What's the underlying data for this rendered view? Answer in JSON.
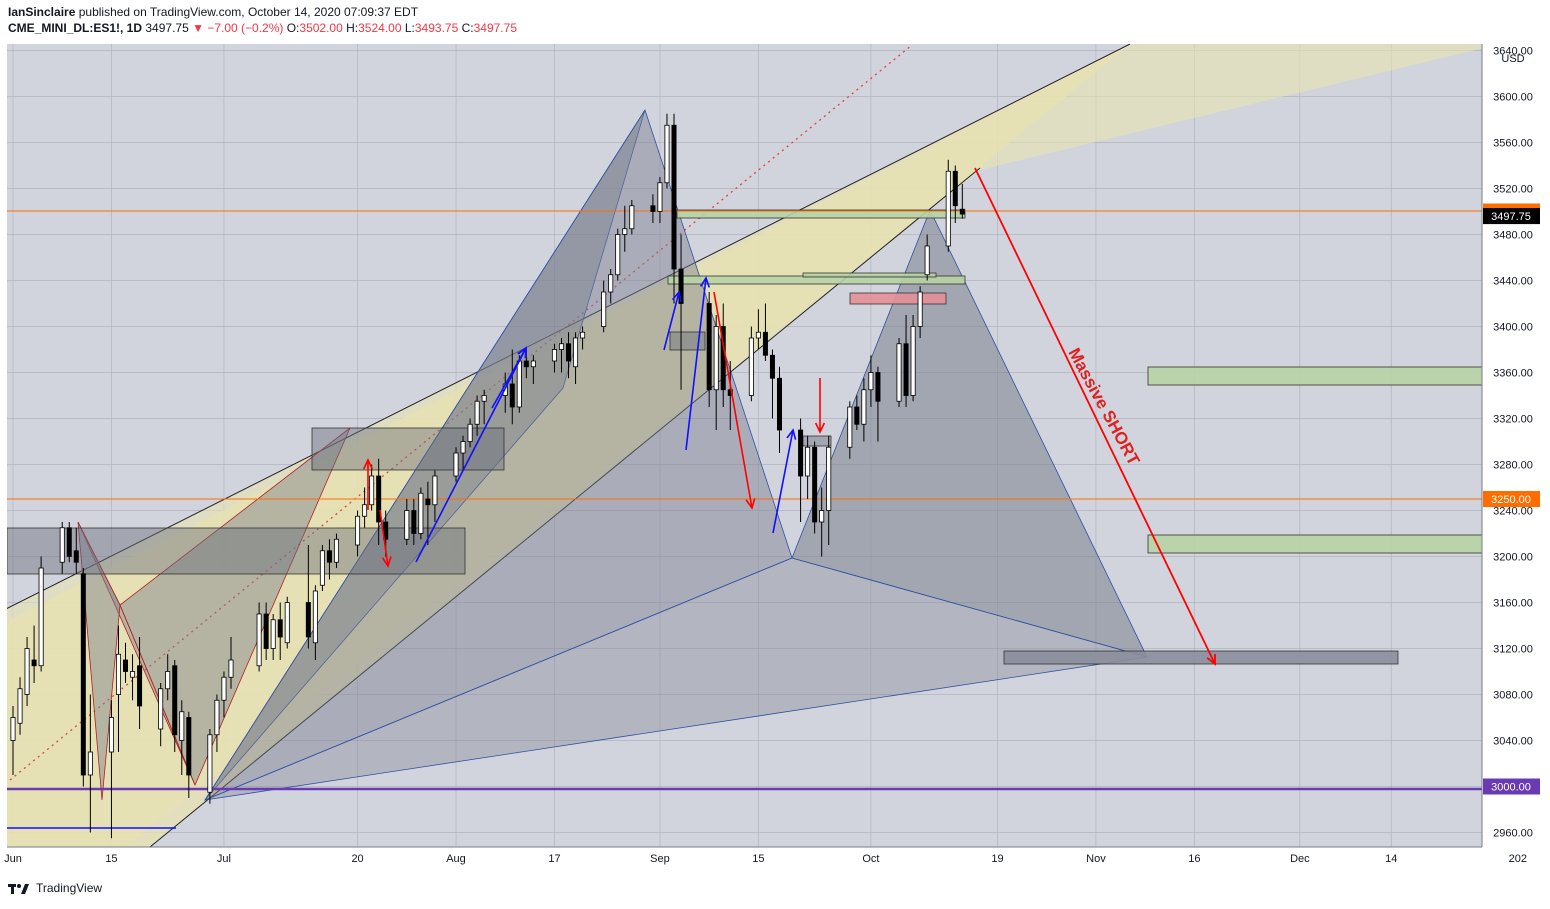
{
  "header": {
    "publisher": "IanSinclaire",
    "published_text": "published on TradingView.com, October 14, 2020 07:09:37 EDT",
    "symbol": "CME_MINI_DL:ES1!, 1D",
    "last": "3497.75",
    "change": "▼ −7.00 (−0.2%)",
    "o_label": "O:",
    "o_value": "3502.00",
    "h_label": "H:",
    "h_value": "3524.00",
    "l_label": "L:",
    "l_value": "3493.75",
    "c_label": "C:",
    "c_value": "3497.75"
  },
  "footer": {
    "brand": "TradingView"
  },
  "colors": {
    "bg": "#d1d4dc",
    "up": "#ffffff",
    "down": "#000000",
    "channel": "#e8e2b0",
    "pattern": "#7b7f8e",
    "blue": "#1010ff",
    "red": "#ff0000",
    "orange_line": "#ff6d00",
    "purple_line": "#6a3ab2",
    "green_zone": "#b7d3a4",
    "red_zone": "#e39097"
  },
  "chart_data": {
    "type": "candlestick",
    "currency": "USD",
    "ylim": [
      2950,
      3650
    ],
    "y_ticks": [
      2960,
      3000,
      3040,
      3080,
      3120,
      3160,
      3200,
      3240,
      3280,
      3320,
      3360,
      3400,
      3440,
      3480,
      3520,
      3560,
      3600,
      3640
    ],
    "x_labels": [
      "Jun",
      "15",
      "Jul",
      "20",
      "Aug",
      "17",
      "Sep",
      "15",
      "Oct",
      "19",
      "Nov",
      "16",
      "Dec",
      "14",
      "202"
    ],
    "price_labels": [
      {
        "value": 3500,
        "text": "3500.00"
      },
      {
        "value": 3497.75,
        "text": "3497.75"
      },
      {
        "value": 3250,
        "text": "3250.00"
      },
      {
        "value": 3000,
        "text": "3000.00"
      }
    ],
    "annotation": "Massive SHORT",
    "candles": [
      {
        "d": "2020-06-01",
        "o": 3040,
        "h": 3070,
        "l": 3010,
        "c": 3060
      },
      {
        "d": "2020-06-02",
        "o": 3055,
        "h": 3095,
        "l": 3045,
        "c": 3085
      },
      {
        "d": "2020-06-03",
        "o": 3080,
        "h": 3130,
        "l": 3070,
        "c": 3120
      },
      {
        "d": "2020-06-04",
        "o": 3110,
        "h": 3140,
        "l": 3090,
        "c": 3105
      },
      {
        "d": "2020-06-05",
        "o": 3105,
        "h": 3200,
        "l": 3100,
        "c": 3190
      },
      {
        "d": "2020-06-08",
        "o": 3195,
        "h": 3230,
        "l": 3185,
        "c": 3225
      },
      {
        "d": "2020-06-09",
        "o": 3225,
        "h": 3230,
        "l": 3195,
        "c": 3200
      },
      {
        "d": "2020-06-10",
        "o": 3205,
        "h": 3225,
        "l": 3185,
        "c": 3195
      },
      {
        "d": "2020-06-11",
        "o": 3185,
        "h": 3190,
        "l": 3000,
        "c": 3010
      },
      {
        "d": "2020-06-12",
        "o": 3010,
        "h": 3080,
        "l": 2960,
        "c": 3030
      },
      {
        "d": "2020-06-15",
        "o": 3030,
        "h": 3075,
        "l": 2955,
        "c": 3060
      },
      {
        "d": "2020-06-16",
        "o": 3080,
        "h": 3140,
        "l": 3030,
        "c": 3115
      },
      {
        "d": "2020-06-17",
        "o": 3110,
        "h": 3125,
        "l": 3090,
        "c": 3100
      },
      {
        "d": "2020-06-18",
        "o": 3095,
        "h": 3115,
        "l": 3075,
        "c": 3100
      },
      {
        "d": "2020-06-19",
        "o": 3105,
        "h": 3130,
        "l": 3050,
        "c": 3070
      },
      {
        "d": "2020-06-22",
        "o": 3050,
        "h": 3090,
        "l": 3035,
        "c": 3085
      },
      {
        "d": "2020-06-23",
        "o": 3085,
        "h": 3115,
        "l": 3075,
        "c": 3100
      },
      {
        "d": "2020-06-24",
        "o": 3105,
        "h": 3110,
        "l": 3030,
        "c": 3045
      },
      {
        "d": "2020-06-25",
        "o": 3040,
        "h": 3075,
        "l": 3010,
        "c": 3065
      },
      {
        "d": "2020-06-26",
        "o": 3060,
        "h": 3065,
        "l": 2990,
        "c": 3010
      },
      {
        "d": "2020-06-29",
        "o": 2995,
        "h": 3050,
        "l": 2985,
        "c": 3045
      },
      {
        "d": "2020-06-30",
        "o": 3045,
        "h": 3080,
        "l": 3030,
        "c": 3075
      },
      {
        "d": "2020-07-01",
        "o": 3075,
        "h": 3100,
        "l": 3060,
        "c": 3095
      },
      {
        "d": "2020-07-02",
        "o": 3095,
        "h": 3130,
        "l": 3085,
        "c": 3110
      },
      {
        "d": "2020-07-06",
        "o": 3105,
        "h": 3160,
        "l": 3100,
        "c": 3150
      },
      {
        "d": "2020-07-07",
        "o": 3150,
        "h": 3160,
        "l": 3110,
        "c": 3120
      },
      {
        "d": "2020-07-08",
        "o": 3120,
        "h": 3150,
        "l": 3110,
        "c": 3145
      },
      {
        "d": "2020-07-09",
        "o": 3145,
        "h": 3160,
        "l": 3110,
        "c": 3130
      },
      {
        "d": "2020-07-10",
        "o": 3125,
        "h": 3165,
        "l": 3120,
        "c": 3160
      },
      {
        "d": "2020-07-13",
        "o": 3160,
        "h": 3210,
        "l": 3120,
        "c": 3130
      },
      {
        "d": "2020-07-14",
        "o": 3125,
        "h": 3175,
        "l": 3110,
        "c": 3170
      },
      {
        "d": "2020-07-15",
        "o": 3175,
        "h": 3210,
        "l": 3170,
        "c": 3205
      },
      {
        "d": "2020-07-16",
        "o": 3205,
        "h": 3215,
        "l": 3180,
        "c": 3195
      },
      {
        "d": "2020-07-17",
        "o": 3195,
        "h": 3220,
        "l": 3190,
        "c": 3215
      },
      {
        "d": "2020-07-20",
        "o": 3210,
        "h": 3240,
        "l": 3200,
        "c": 3235
      },
      {
        "d": "2020-07-21",
        "o": 3235,
        "h": 3260,
        "l": 3225,
        "c": 3245
      },
      {
        "d": "2020-07-22",
        "o": 3245,
        "h": 3280,
        "l": 3240,
        "c": 3270
      },
      {
        "d": "2020-07-23",
        "o": 3270,
        "h": 3285,
        "l": 3210,
        "c": 3230
      },
      {
        "d": "2020-07-24",
        "o": 3230,
        "h": 3240,
        "l": 3200,
        "c": 3215
      },
      {
        "d": "2020-07-27",
        "o": 3215,
        "h": 3250,
        "l": 3210,
        "c": 3240
      },
      {
        "d": "2020-07-28",
        "o": 3240,
        "h": 3250,
        "l": 3210,
        "c": 3220
      },
      {
        "d": "2020-07-29",
        "o": 3220,
        "h": 3260,
        "l": 3215,
        "c": 3255
      },
      {
        "d": "2020-07-30",
        "o": 3250,
        "h": 3265,
        "l": 3210,
        "c": 3245
      },
      {
        "d": "2020-07-31",
        "o": 3245,
        "h": 3275,
        "l": 3230,
        "c": 3270
      },
      {
        "d": "2020-08-03",
        "o": 3270,
        "h": 3295,
        "l": 3265,
        "c": 3290
      },
      {
        "d": "2020-08-04",
        "o": 3290,
        "h": 3305,
        "l": 3275,
        "c": 3300
      },
      {
        "d": "2020-08-05",
        "o": 3300,
        "h": 3320,
        "l": 3295,
        "c": 3315
      },
      {
        "d": "2020-08-06",
        "o": 3315,
        "h": 3340,
        "l": 3305,
        "c": 3335
      },
      {
        "d": "2020-08-07",
        "o": 3335,
        "h": 3345,
        "l": 3315,
        "c": 3340
      },
      {
        "d": "2020-08-10",
        "o": 3340,
        "h": 3360,
        "l": 3325,
        "c": 3350
      },
      {
        "d": "2020-08-11",
        "o": 3350,
        "h": 3380,
        "l": 3315,
        "c": 3330
      },
      {
        "d": "2020-08-12",
        "o": 3330,
        "h": 3375,
        "l": 3325,
        "c": 3370
      },
      {
        "d": "2020-08-13",
        "o": 3370,
        "h": 3380,
        "l": 3355,
        "c": 3365
      },
      {
        "d": "2020-08-14",
        "o": 3365,
        "h": 3375,
        "l": 3350,
        "c": 3370
      },
      {
        "d": "2020-08-17",
        "o": 3370,
        "h": 3385,
        "l": 3360,
        "c": 3380
      },
      {
        "d": "2020-08-18",
        "o": 3380,
        "h": 3390,
        "l": 3360,
        "c": 3385
      },
      {
        "d": "2020-08-19",
        "o": 3385,
        "h": 3395,
        "l": 3355,
        "c": 3370
      },
      {
        "d": "2020-08-20",
        "o": 3365,
        "h": 3395,
        "l": 3350,
        "c": 3390
      },
      {
        "d": "2020-08-21",
        "o": 3390,
        "h": 3400,
        "l": 3380,
        "c": 3395
      },
      {
        "d": "2020-08-24",
        "o": 3400,
        "h": 3440,
        "l": 3395,
        "c": 3430
      },
      {
        "d": "2020-08-25",
        "o": 3430,
        "h": 3450,
        "l": 3420,
        "c": 3445
      },
      {
        "d": "2020-08-26",
        "o": 3445,
        "h": 3485,
        "l": 3440,
        "c": 3480
      },
      {
        "d": "2020-08-27",
        "o": 3480,
        "h": 3505,
        "l": 3465,
        "c": 3485
      },
      {
        "d": "2020-08-28",
        "o": 3485,
        "h": 3510,
        "l": 3480,
        "c": 3505
      },
      {
        "d": "2020-08-31",
        "o": 3505,
        "h": 3515,
        "l": 3490,
        "c": 3500
      },
      {
        "d": "2020-09-01",
        "o": 3500,
        "h": 3530,
        "l": 3490,
        "c": 3525
      },
      {
        "d": "2020-09-02",
        "o": 3525,
        "h": 3585,
        "l": 3520,
        "c": 3575
      },
      {
        "d": "2020-09-03",
        "o": 3575,
        "h": 3585,
        "l": 3420,
        "c": 3450
      },
      {
        "d": "2020-09-04",
        "o": 3450,
        "h": 3480,
        "l": 3345,
        "c": 3420
      },
      {
        "d": "2020-09-08",
        "o": 3420,
        "h": 3430,
        "l": 3330,
        "c": 3345
      },
      {
        "d": "2020-09-09",
        "o": 3345,
        "h": 3410,
        "l": 3310,
        "c": 3400
      },
      {
        "d": "2020-09-10",
        "o": 3400,
        "h": 3420,
        "l": 3330,
        "c": 3345
      },
      {
        "d": "2020-09-11",
        "o": 3345,
        "h": 3370,
        "l": 3310,
        "c": 3340
      },
      {
        "d": "2020-09-14",
        "o": 3340,
        "h": 3400,
        "l": 3335,
        "c": 3390
      },
      {
        "d": "2020-09-15",
        "o": 3390,
        "h": 3415,
        "l": 3380,
        "c": 3395
      },
      {
        "d": "2020-09-16",
        "o": 3395,
        "h": 3420,
        "l": 3370,
        "c": 3375
      },
      {
        "d": "2020-09-17",
        "o": 3375,
        "h": 3380,
        "l": 3320,
        "c": 3355
      },
      {
        "d": "2020-09-18",
        "o": 3355,
        "h": 3365,
        "l": 3290,
        "c": 3310
      },
      {
        "d": "2020-09-21",
        "o": 3310,
        "h": 3320,
        "l": 3230,
        "c": 3270
      },
      {
        "d": "2020-09-22",
        "o": 3270,
        "h": 3305,
        "l": 3250,
        "c": 3295
      },
      {
        "d": "2020-09-23",
        "o": 3295,
        "h": 3300,
        "l": 3220,
        "c": 3230
      },
      {
        "d": "2020-09-24",
        "o": 3230,
        "h": 3260,
        "l": 3200,
        "c": 3240
      },
      {
        "d": "2020-09-25",
        "o": 3240,
        "h": 3305,
        "l": 3210,
        "c": 3295
      },
      {
        "d": "2020-09-28",
        "o": 3295,
        "h": 3335,
        "l": 3285,
        "c": 3330
      },
      {
        "d": "2020-09-29",
        "o": 3330,
        "h": 3340,
        "l": 3310,
        "c": 3315
      },
      {
        "d": "2020-09-30",
        "o": 3315,
        "h": 3355,
        "l": 3300,
        "c": 3345
      },
      {
        "d": "2020-10-01",
        "o": 3345,
        "h": 3375,
        "l": 3330,
        "c": 3360
      },
      {
        "d": "2020-10-02",
        "o": 3360,
        "h": 3365,
        "l": 3300,
        "c": 3335
      },
      {
        "d": "2020-10-05",
        "o": 3335,
        "h": 3390,
        "l": 3330,
        "c": 3385
      },
      {
        "d": "2020-10-06",
        "o": 3385,
        "h": 3410,
        "l": 3330,
        "c": 3340
      },
      {
        "d": "2020-10-07",
        "o": 3340,
        "h": 3410,
        "l": 3335,
        "c": 3400
      },
      {
        "d": "2020-10-08",
        "o": 3400,
        "h": 3435,
        "l": 3390,
        "c": 3430
      },
      {
        "d": "2020-10-09",
        "o": 3445,
        "h": 3480,
        "l": 3440,
        "c": 3470
      },
      {
        "d": "2020-10-12",
        "o": 3470,
        "h": 3545,
        "l": 3465,
        "c": 3535
      },
      {
        "d": "2020-10-13",
        "o": 3535,
        "h": 3540,
        "l": 3490,
        "c": 3505
      },
      {
        "d": "2020-10-14",
        "o": 3502,
        "h": 3524,
        "l": 3493.75,
        "c": 3497.75
      }
    ]
  }
}
